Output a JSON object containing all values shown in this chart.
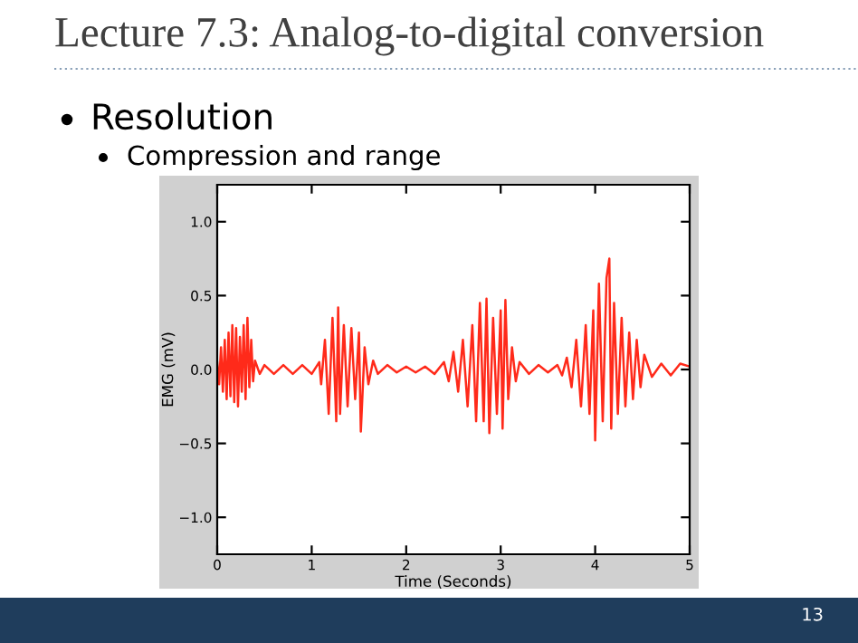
{
  "chart_data": {
    "type": "line",
    "title": "Lecture 7.3: Analog-to-digital conversion",
    "annotations": [
      "Resolution",
      "Compression and range",
      "13"
    ],
    "xlabel": "Time (Seconds)",
    "ylabel": "EMG (mV)",
    "series": [
      {
        "color": "#ff2a1a",
        "x": [
          0,
          0.02,
          0.04,
          0.06,
          0.08,
          0.1,
          0.12,
          0.14,
          0.16,
          0.18,
          0.2,
          0.22,
          0.24,
          0.26,
          0.28,
          0.3,
          0.32,
          0.34,
          0.36,
          0.38,
          0.4,
          0.45,
          0.5,
          0.6,
          0.7,
          0.8,
          0.9,
          1.0,
          1.08,
          1.1,
          1.14,
          1.18,
          1.22,
          1.26,
          1.28,
          1.3,
          1.34,
          1.38,
          1.42,
          1.46,
          1.5,
          1.52,
          1.56,
          1.6,
          1.65,
          1.7,
          1.8,
          1.9,
          2.0,
          2.1,
          2.2,
          2.3,
          2.4,
          2.45,
          2.5,
          2.55,
          2.6,
          2.65,
          2.7,
          2.74,
          2.78,
          2.82,
          2.85,
          2.88,
          2.92,
          2.96,
          3.0,
          3.02,
          3.05,
          3.08,
          3.12,
          3.16,
          3.2,
          3.3,
          3.4,
          3.5,
          3.6,
          3.65,
          3.7,
          3.75,
          3.8,
          3.85,
          3.9,
          3.94,
          3.98,
          4.0,
          4.04,
          4.08,
          4.12,
          4.15,
          4.17,
          4.2,
          4.24,
          4.28,
          4.32,
          4.36,
          4.4,
          4.44,
          4.48,
          4.52,
          4.6,
          4.7,
          4.8,
          4.9,
          5.0
        ],
        "values": [
          0.05,
          -0.1,
          0.15,
          -0.15,
          0.2,
          -0.2,
          0.25,
          -0.18,
          0.3,
          -0.22,
          0.28,
          -0.25,
          0.22,
          -0.15,
          0.3,
          -0.2,
          0.35,
          -0.12,
          0.2,
          -0.08,
          0.06,
          -0.03,
          0.03,
          -0.03,
          0.03,
          -0.03,
          0.03,
          -0.03,
          0.05,
          -0.1,
          0.2,
          -0.3,
          0.35,
          -0.35,
          0.42,
          -0.3,
          0.3,
          -0.25,
          0.28,
          -0.2,
          0.25,
          -0.42,
          0.15,
          -0.1,
          0.06,
          -0.03,
          0.03,
          -0.02,
          0.02,
          -0.02,
          0.02,
          -0.03,
          0.05,
          -0.08,
          0.12,
          -0.15,
          0.2,
          -0.25,
          0.3,
          -0.35,
          0.45,
          -0.35,
          0.48,
          -0.43,
          0.35,
          -0.3,
          0.4,
          -0.4,
          0.47,
          -0.2,
          0.15,
          -0.08,
          0.05,
          -0.03,
          0.03,
          -0.02,
          0.03,
          -0.04,
          0.08,
          -0.12,
          0.2,
          -0.25,
          0.3,
          -0.3,
          0.4,
          -0.48,
          0.58,
          -0.35,
          0.62,
          0.75,
          -0.4,
          0.45,
          -0.3,
          0.35,
          -0.25,
          0.25,
          -0.2,
          0.2,
          -0.12,
          0.1,
          -0.05,
          0.04,
          -0.04,
          0.04,
          0.02
        ]
      }
    ],
    "xlim": [
      0,
      5
    ],
    "ylim": [
      -1.25,
      1.25
    ],
    "xticks": [
      0,
      1,
      2,
      3,
      4,
      5
    ],
    "yticks": [
      {
        "value": -1.0,
        "label": "−1.0"
      },
      {
        "value": -0.5,
        "label": "−0.5"
      },
      {
        "value": 0.0,
        "label": "0.0"
      },
      {
        "value": 0.5,
        "label": "0.5"
      },
      {
        "value": 1.0,
        "label": "1.0"
      }
    ],
    "grid": false,
    "legend": false,
    "marker": "none",
    "line_style": "solid"
  }
}
